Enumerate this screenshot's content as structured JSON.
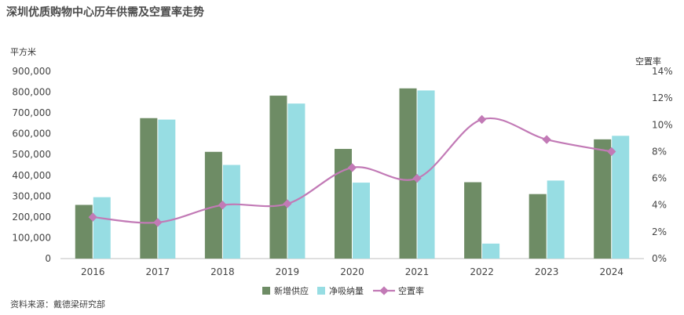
{
  "title": "深圳优质购物中心历年供需及空置率走势",
  "source": "资料来源：戴德梁研究部",
  "chart_data": {
    "type": "bar",
    "title": "深圳优质购物中心历年供需及空置率走势",
    "ylabel": "平方米",
    "y2label": "空置率",
    "categories": [
      "2016",
      "2017",
      "2018",
      "2019",
      "2020",
      "2021",
      "2022",
      "2023",
      "2024"
    ],
    "ylim": [
      0,
      900000
    ],
    "yticks": [
      0,
      100000,
      200000,
      300000,
      400000,
      500000,
      600000,
      700000,
      800000,
      900000
    ],
    "ytick_labels": [
      "0",
      "100,000",
      "200,000",
      "300,000",
      "400,000",
      "500,000",
      "600,000",
      "700,000",
      "800,000",
      "900,000"
    ],
    "y2lim": [
      0,
      14
    ],
    "y2ticks": [
      0,
      2,
      4,
      6,
      8,
      10,
      12,
      14
    ],
    "y2tick_labels": [
      "0%",
      "2%",
      "4%",
      "6%",
      "8%",
      "10%",
      "12%",
      "14%"
    ],
    "series": [
      {
        "name": "新增供应",
        "type": "bar",
        "color": "#6e8c65",
        "values": [
          258000,
          675000,
          513000,
          783000,
          527000,
          818000,
          367000,
          310000,
          573000
        ]
      },
      {
        "name": "净吸纳量",
        "type": "bar",
        "color": "#97dde3",
        "values": [
          295000,
          668000,
          450000,
          745000,
          365000,
          808000,
          72000,
          375000,
          590000
        ]
      },
      {
        "name": "空置率",
        "type": "line",
        "axis": "right",
        "color": "#c27ab6",
        "values": [
          3.1,
          2.7,
          4.0,
          4.1,
          6.8,
          6.0,
          10.4,
          8.9,
          8.0
        ]
      }
    ],
    "legend": "bottom",
    "grid": false
  }
}
